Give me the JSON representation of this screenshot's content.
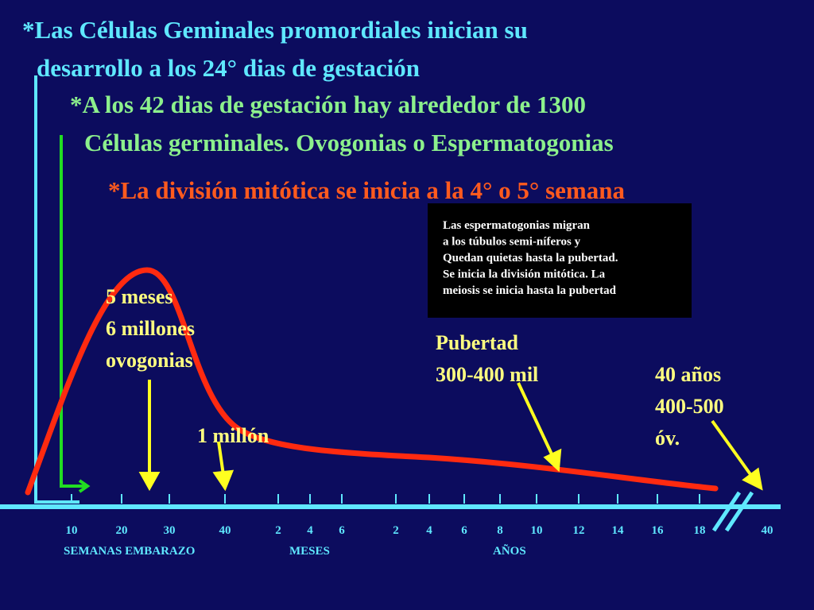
{
  "title_lines": {
    "cyan": [
      "*Las Células Geminales promordiales inician su",
      "desarrollo a los 24° dias de gestación"
    ],
    "green": [
      "*A los 42 dias de gestación hay alrededor de 1300",
      "Células germinales. Ovogonias o Espermatogonias"
    ],
    "red": "*La división mitótica se inicia a la 4°  o 5° semana"
  },
  "note_box": [
    "Las espermatogonias migran",
    "a los túbulos semi-níferos y",
    "Quedan quietas hasta la pubertad.",
    "Se inicia la división mitótica. La",
    "meiosis se inicia hasta la pubertad"
  ],
  "annotations": {
    "peak": [
      "5 meses",
      "6 millones",
      "ovogonias"
    ],
    "birth": "1 millón",
    "puberty": [
      "Pubertad",
      "300-400 mil"
    ],
    "forty": [
      "40 años",
      "400-500",
      "óv."
    ]
  },
  "axis": {
    "tick_labels": [
      "10",
      "20",
      "30",
      "40",
      "2",
      "4",
      "6",
      "2",
      "4",
      "6",
      "8",
      "10",
      "12",
      "14",
      "16",
      "18",
      "40"
    ],
    "groups": [
      "SEMANAS EMBARAZO",
      "MESES",
      "AÑOS"
    ]
  }
}
